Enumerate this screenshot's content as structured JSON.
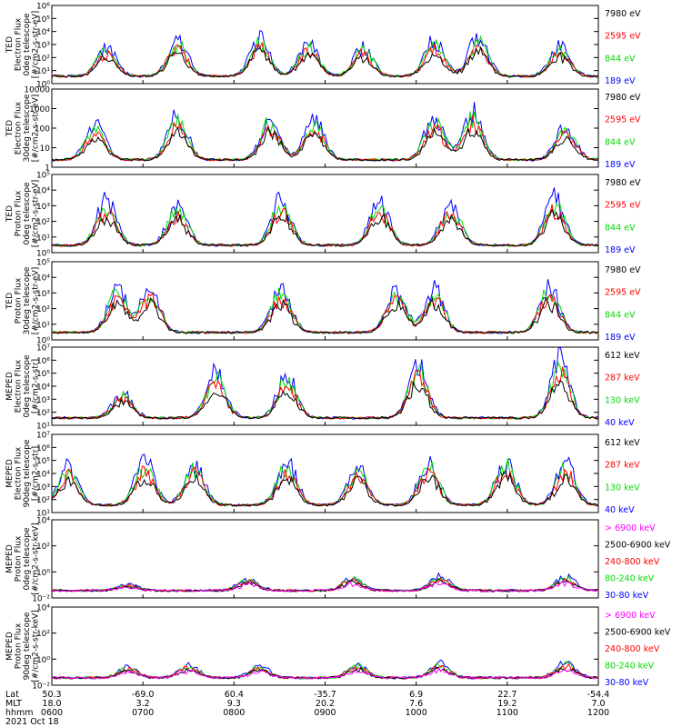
{
  "chart_data": [
    {
      "type": "line",
      "ylabel": [
        "TED",
        "Electron Flux",
        "0deg telescope",
        "[#/cm2-s-str-eV]"
      ],
      "ylim": [
        1,
        1000000
      ],
      "yscale": "log",
      "ytick_labels": [
        "10⁰",
        "10¹",
        "10²",
        "10³",
        "10⁴",
        "10⁵",
        "10⁶"
      ],
      "legend": [
        {
          "label": "7980 eV",
          "color": "#000000"
        },
        {
          "label": "2595 eV",
          "color": "#ff0000"
        },
        {
          "label": "844 eV",
          "color": "#00dd00"
        },
        {
          "label": "189 eV",
          "color": "#0000ff"
        }
      ],
      "bursts": [
        [
          0.1,
          2.3
        ],
        [
          0.23,
          2.8
        ],
        [
          0.38,
          3.0
        ],
        [
          0.47,
          2.6
        ],
        [
          0.57,
          2.3
        ],
        [
          0.7,
          2.8
        ],
        [
          0.78,
          3.1
        ],
        [
          0.93,
          2.4
        ]
      ]
    },
    {
      "type": "line",
      "ylabel": [
        "TED",
        "Electron Flux",
        "30deg telescope",
        "[#/cm2-s-str-eV]"
      ],
      "ylim": [
        1,
        10000
      ],
      "yscale": "log",
      "ytick_labels": [
        "1",
        "10",
        "100",
        "1000",
        "10000"
      ],
      "legend": [
        {
          "label": "7980 eV",
          "color": "#000000"
        },
        {
          "label": "2595 eV",
          "color": "#ff0000"
        },
        {
          "label": "844 eV",
          "color": "#00dd00"
        },
        {
          "label": "189 eV",
          "color": "#0000ff"
        }
      ],
      "bursts": [
        [
          0.08,
          1.9
        ],
        [
          0.23,
          2.4
        ],
        [
          0.4,
          2.2
        ],
        [
          0.48,
          2.1
        ],
        [
          0.7,
          2.3
        ],
        [
          0.77,
          2.5
        ],
        [
          0.94,
          1.8
        ]
      ]
    },
    {
      "type": "line",
      "ylabel": [
        "TED",
        "Proton Flux",
        "0deg telescope",
        "[#/cm2-s-str-eV]"
      ],
      "ylim": [
        1,
        100000
      ],
      "yscale": "log",
      "ytick_labels": [
        "10⁰",
        "10¹",
        "10²",
        "10³",
        "10⁴",
        "10⁵"
      ],
      "legend": [
        {
          "label": "7980 eV",
          "color": "#000000"
        },
        {
          "label": "2595 eV",
          "color": "#ff0000"
        },
        {
          "label": "844 eV",
          "color": "#00dd00"
        },
        {
          "label": "189 eV",
          "color": "#0000ff"
        }
      ],
      "bursts": [
        [
          0.1,
          2.9
        ],
        [
          0.23,
          2.6
        ],
        [
          0.42,
          3.0
        ],
        [
          0.6,
          2.9
        ],
        [
          0.73,
          2.7
        ],
        [
          0.92,
          3.1
        ]
      ]
    },
    {
      "type": "line",
      "ylabel": [
        "TED",
        "Proton Flux",
        "30deg telescope",
        "[#/cm2-s-str-eV]"
      ],
      "ylim": [
        1,
        100000
      ],
      "yscale": "log",
      "ytick_labels": [
        "10⁰",
        "10¹",
        "10²",
        "10³",
        "10⁴",
        "10⁵"
      ],
      "legend": [
        {
          "label": "7980 eV",
          "color": "#000000"
        },
        {
          "label": "2595 eV",
          "color": "#ff0000"
        },
        {
          "label": "844 eV",
          "color": "#00dd00"
        },
        {
          "label": "189 eV",
          "color": "#0000ff"
        }
      ],
      "bursts": [
        [
          0.12,
          2.8
        ],
        [
          0.18,
          2.9
        ],
        [
          0.42,
          3.0
        ],
        [
          0.63,
          2.9
        ],
        [
          0.7,
          2.9
        ],
        [
          0.91,
          3.1
        ]
      ]
    },
    {
      "type": "line",
      "ylabel": [
        "MEPED",
        "Electron Flux",
        "0deg telescope",
        "[#/cm2-s-str]"
      ],
      "ylim": [
        10,
        10000000
      ],
      "yscale": "log",
      "ytick_labels": [
        "10¹",
        "10²",
        "10³",
        "10⁴",
        "10⁵",
        "10⁶",
        "10⁷"
      ],
      "legend": [
        {
          "label": "612 keV",
          "color": "#000000"
        },
        {
          "label": "287 keV",
          "color": "#ff0000"
        },
        {
          "label": "130 keV",
          "color": "#00dd00"
        },
        {
          "label": "40 keV",
          "color": "#0000ff"
        }
      ],
      "bursts": [
        [
          0.13,
          2.0
        ],
        [
          0.3,
          3.6
        ],
        [
          0.43,
          3.3
        ],
        [
          0.67,
          4.2
        ],
        [
          0.93,
          4.6
        ]
      ]
    },
    {
      "type": "line",
      "ylabel": [
        "MEPED",
        "Electron Flux",
        "90deg telescope",
        "[#/cm2-s-str]"
      ],
      "ylim": [
        10,
        10000000
      ],
      "yscale": "log",
      "ytick_labels": [
        "10¹",
        "10²",
        "10³",
        "10⁴",
        "10⁵",
        "10⁶",
        "10⁷"
      ],
      "legend": [
        {
          "label": "612 keV",
          "color": "#000000"
        },
        {
          "label": "287 keV",
          "color": "#ff0000"
        },
        {
          "label": "130 keV",
          "color": "#00dd00"
        },
        {
          "label": "40 keV",
          "color": "#0000ff"
        }
      ],
      "bursts": [
        [
          0.03,
          3.0
        ],
        [
          0.17,
          3.5
        ],
        [
          0.26,
          3.3
        ],
        [
          0.43,
          3.4
        ],
        [
          0.56,
          3.0
        ],
        [
          0.69,
          3.4
        ],
        [
          0.83,
          3.5
        ],
        [
          0.94,
          3.3
        ]
      ]
    },
    {
      "type": "line",
      "ylabel": [
        "MEPED",
        "Proton Flux",
        "0deg telescope",
        "[#/cm2-s-str-keV]"
      ],
      "ylim": [
        0.01,
        100000
      ],
      "yscale": "log",
      "ytick_labels": [
        "10⁻²",
        "10⁰",
        "10²",
        "10⁴"
      ],
      "legend": [
        {
          "label": "> 6900 keV",
          "color": "#ff00ff"
        },
        {
          "label": "2500-6900 keV",
          "color": "#000000"
        },
        {
          "label": "240-800 keV",
          "color": "#ff0000"
        },
        {
          "label": "80-240 keV",
          "color": "#00dd00"
        },
        {
          "label": "30-80 keV",
          "color": "#0000ff"
        }
      ],
      "bursts": [
        [
          0.14,
          0.6
        ],
        [
          0.36,
          1.1
        ],
        [
          0.55,
          1.2
        ],
        [
          0.71,
          1.3
        ],
        [
          0.94,
          1.3
        ]
      ]
    },
    {
      "type": "line",
      "ylabel": [
        "MEPED",
        "Proton Flux",
        "90deg telescope",
        "[#/cm2-s-str-keV]"
      ],
      "ylim": [
        0.01,
        100000
      ],
      "yscale": "log",
      "ytick_labels": [
        "10⁻²",
        "10⁰",
        "10²",
        "10⁴"
      ],
      "legend": [
        {
          "label": "> 6900 keV",
          "color": "#ff00ff"
        },
        {
          "label": "2500-6900 keV",
          "color": "#000000"
        },
        {
          "label": "240-800 keV",
          "color": "#ff0000"
        },
        {
          "label": "80-240 keV",
          "color": "#00dd00"
        },
        {
          "label": "30-80 keV",
          "color": "#0000ff"
        }
      ],
      "bursts": [
        [
          0.14,
          1.0
        ],
        [
          0.25,
          1.2
        ],
        [
          0.38,
          1.1
        ],
        [
          0.56,
          1.2
        ],
        [
          0.71,
          1.3
        ],
        [
          0.94,
          1.4
        ]
      ]
    }
  ],
  "x_axis": {
    "row_labels": [
      "Lat",
      "MLT",
      "hhmm"
    ],
    "ticks": [
      {
        "Lat": "50.3",
        "MLT": "18.0",
        "hhmm": "0600"
      },
      {
        "Lat": "-69.0",
        "MLT": "3.2",
        "hhmm": "0700"
      },
      {
        "Lat": "60.4",
        "MLT": "9.3",
        "hhmm": "0800"
      },
      {
        "Lat": "-35.7",
        "MLT": "20.2",
        "hhmm": "0900"
      },
      {
        "Lat": "6.9",
        "MLT": "7.6",
        "hhmm": "1000"
      },
      {
        "Lat": "22.7",
        "MLT": "19.2",
        "hhmm": "1100"
      },
      {
        "Lat": "-54.4",
        "MLT": "7.0",
        "hhmm": "1200"
      }
    ]
  },
  "date_label": "2021 Oct 18"
}
